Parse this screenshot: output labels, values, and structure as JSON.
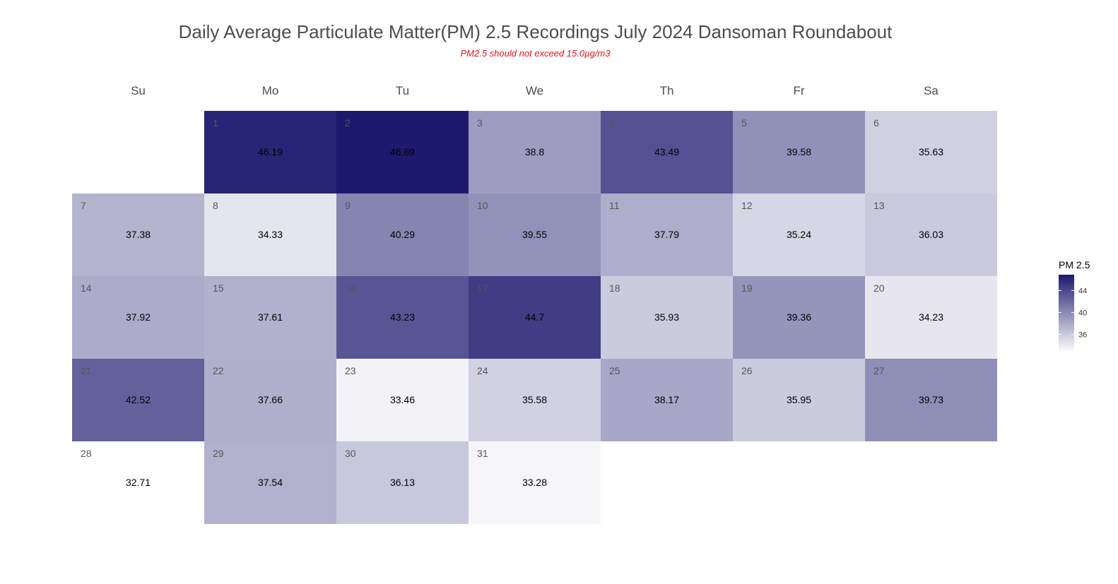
{
  "title": "Daily Average Particulate Matter(PM) 2.5 Recordings July 2024 Dansoman Roundabout",
  "subtitle": "PM2.5 should not exceed 15.0µg/m3",
  "colors": {
    "low": "#ffffff",
    "high": "#1c1a6e",
    "subtitle": "#e8101c"
  },
  "chart_data": {
    "type": "heatmap",
    "weekdays": [
      "Su",
      "Mo",
      "Tu",
      "We",
      "Th",
      "Fr",
      "Sa"
    ],
    "first_weekday_index": 1,
    "days": [
      1,
      2,
      3,
      4,
      5,
      6,
      7,
      8,
      9,
      10,
      11,
      12,
      13,
      14,
      15,
      16,
      17,
      18,
      19,
      20,
      21,
      22,
      23,
      24,
      25,
      26,
      27,
      28,
      29,
      30,
      31
    ],
    "values": [
      46.19,
      46.89,
      38.8,
      43.49,
      39.58,
      35.63,
      37.38,
      34.33,
      40.29,
      39.55,
      37.79,
      35.24,
      36.03,
      37.92,
      37.61,
      43.23,
      44.7,
      35.93,
      39.36,
      34.23,
      42.52,
      37.66,
      33.46,
      35.58,
      38.17,
      35.95,
      39.73,
      32.71,
      37.54,
      36.13,
      33.28
    ],
    "legend": {
      "title": "PM 2.5",
      "ticks": [
        36,
        40,
        44
      ]
    }
  }
}
